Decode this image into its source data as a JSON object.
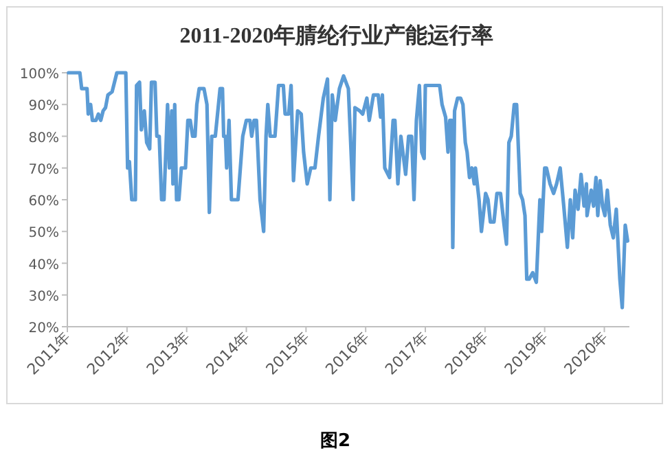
{
  "chart_data": {
    "type": "line",
    "title": "2011-2020年腈纶行业产能运行率",
    "annotations": [
      "图2"
    ],
    "color": "#5b9bd5",
    "grid": false,
    "marker": "none",
    "line_style": "solid",
    "xlim": [
      2011,
      2020.42
    ],
    "xticks": [
      {
        "value": 2011,
        "label": "2011年"
      },
      {
        "value": 2012,
        "label": "2012年"
      },
      {
        "value": 2013,
        "label": "2013年"
      },
      {
        "value": 2014,
        "label": "2014年"
      },
      {
        "value": 2015,
        "label": "2015年"
      },
      {
        "value": 2016,
        "label": "2016年"
      },
      {
        "value": 2017,
        "label": "2017年"
      },
      {
        "value": 2018,
        "label": "2018年"
      },
      {
        "value": 2019,
        "label": "2019年"
      },
      {
        "value": 2020,
        "label": "2020年"
      }
    ],
    "ylim": [
      20,
      100
    ],
    "yticks": [
      {
        "value": 20,
        "label": "20%"
      },
      {
        "value": 30,
        "label": "30%"
      },
      {
        "value": 40,
        "label": "40%"
      },
      {
        "value": 50,
        "label": "50%"
      },
      {
        "value": 60,
        "label": "60%"
      },
      {
        "value": 70,
        "label": "70%"
      },
      {
        "value": 80,
        "label": "80%"
      },
      {
        "value": 90,
        "label": "90%"
      },
      {
        "value": 100,
        "label": "100%"
      }
    ],
    "x": [
      2011.02,
      2011.21,
      2011.24,
      2011.33,
      2011.35,
      2011.39,
      2011.42,
      2011.48,
      2011.52,
      2011.56,
      2011.6,
      2011.64,
      2011.68,
      2011.75,
      2011.83,
      2011.98,
      2012.01,
      2012.04,
      2012.08,
      2012.14,
      2012.16,
      2012.21,
      2012.24,
      2012.29,
      2012.33,
      2012.38,
      2012.41,
      2012.47,
      2012.5,
      2012.54,
      2012.58,
      2012.62,
      2012.68,
      2012.71,
      2012.75,
      2012.77,
      2012.8,
      2012.83,
      2012.87,
      2012.91,
      2012.98,
      2013.02,
      2013.06,
      2013.1,
      2013.14,
      2013.17,
      2013.21,
      2013.29,
      2013.34,
      2013.38,
      2013.42,
      2013.48,
      2013.56,
      2013.6,
      2013.62,
      2013.65,
      2013.67,
      2013.71,
      2013.75,
      2013.86,
      2013.9,
      2013.94,
      2014.0,
      2014.06,
      2014.09,
      2014.13,
      2014.17,
      2014.23,
      2014.29,
      2014.33,
      2014.36,
      2014.4,
      2014.48,
      2014.54,
      2014.62,
      2014.65,
      2014.71,
      2014.75,
      2014.79,
      2014.86,
      2014.92,
      2014.96,
      2015.02,
      2015.08,
      2015.15,
      2015.21,
      2015.29,
      2015.36,
      2015.4,
      2015.44,
      2015.49,
      2015.56,
      2015.63,
      2015.71,
      2015.79,
      2015.82,
      2015.9,
      2015.95,
      2016.02,
      2016.06,
      2016.13,
      2016.21,
      2016.25,
      2016.28,
      2016.32,
      2016.4,
      2016.46,
      2016.49,
      2016.54,
      2016.59,
      2016.67,
      2016.72,
      2016.77,
      2016.81,
      2016.85,
      2016.9,
      2016.94,
      2016.98,
      2017.0,
      2017.09,
      2017.24,
      2017.28,
      2017.34,
      2017.38,
      2017.41,
      2017.44,
      2017.46,
      2017.49,
      2017.54,
      2017.59,
      2017.63,
      2017.67,
      2017.7,
      2017.74,
      2017.78,
      2017.82,
      2017.84,
      2017.9,
      2017.94,
      2017.97,
      2018.01,
      2018.05,
      2018.09,
      2018.15,
      2018.2,
      2018.26,
      2018.32,
      2018.36,
      2018.4,
      2018.44,
      2018.49,
      2018.53,
      2018.59,
      2018.63,
      2018.67,
      2018.7,
      2018.74,
      2018.8,
      2018.86,
      2018.92,
      2018.95,
      2019.0,
      2019.03,
      2019.09,
      2019.15,
      2019.2,
      2019.26,
      2019.32,
      2019.38,
      2019.43,
      2019.47,
      2019.51,
      2019.56,
      2019.61,
      2019.66,
      2019.7,
      2019.71,
      2019.78,
      2019.82,
      2019.86,
      2019.89,
      2019.93,
      2019.97,
      2020.01,
      2020.05,
      2020.1,
      2020.15,
      2020.2,
      2020.26,
      2020.3,
      2020.35,
      2020.39
    ],
    "values": [
      100,
      100,
      95,
      95,
      87,
      90,
      85,
      85,
      87,
      85,
      88,
      89,
      93,
      94,
      100,
      100,
      70,
      72,
      60,
      60,
      96,
      97,
      82,
      88,
      78,
      76,
      97,
      97,
      80,
      80,
      60,
      60,
      90,
      70,
      88,
      65,
      90,
      60,
      60,
      70,
      70,
      85,
      85,
      80,
      80,
      90,
      95,
      95,
      90,
      56,
      80,
      80,
      95,
      95,
      80,
      80,
      70,
      85,
      60,
      60,
      70,
      80,
      85,
      85,
      80,
      85,
      85,
      60,
      50,
      80,
      90,
      80,
      80,
      96,
      96,
      87,
      87,
      96,
      66,
      88,
      87,
      75,
      65,
      70,
      70,
      80,
      92,
      98,
      60,
      93,
      85,
      95,
      99,
      95,
      60,
      89,
      88,
      87,
      92,
      85,
      93,
      93,
      86,
      93,
      70,
      67,
      85,
      85,
      65,
      80,
      68,
      80,
      80,
      60,
      85,
      96,
      75,
      73,
      96,
      96,
      96,
      90,
      86,
      75,
      85,
      85,
      45,
      88,
      92,
      92,
      90,
      78,
      75,
      67,
      70,
      65,
      70,
      60,
      50,
      55,
      62,
      60,
      53,
      53,
      62,
      62,
      52,
      46,
      78,
      80,
      90,
      90,
      62,
      60,
      55,
      35,
      35,
      37,
      34,
      60,
      50,
      70,
      70,
      65,
      62,
      65,
      70,
      58,
      45,
      60,
      48,
      63,
      57,
      68,
      58,
      65,
      55,
      63,
      58,
      67,
      55,
      66,
      58,
      55,
      63,
      52,
      48,
      57,
      35,
      26,
      52,
      47
    ]
  }
}
